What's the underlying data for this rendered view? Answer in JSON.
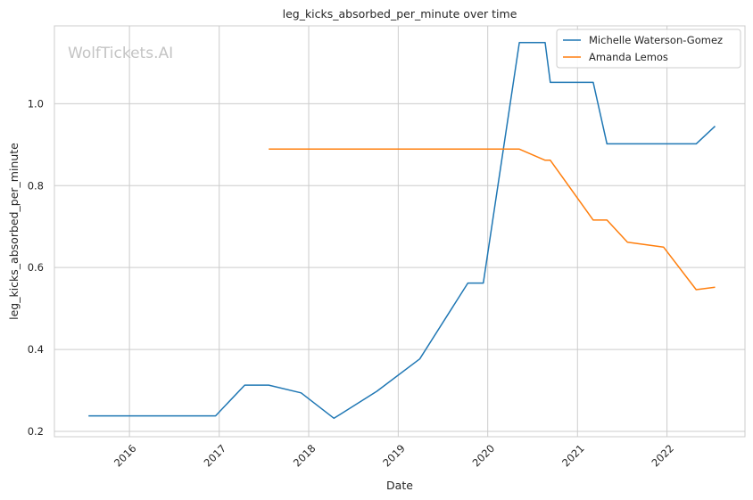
{
  "chart_data": {
    "type": "line",
    "title": "leg_kicks_absorbed_per_minute over time",
    "xlabel": "Date",
    "ylabel": "leg_kicks_absorbed_per_minute",
    "watermark": "WolfTickets.AI",
    "xlim": [
      "2015-03-01",
      "2022-11-15"
    ],
    "ylim": [
      0.187,
      1.19
    ],
    "x_ticks": [
      "2016",
      "2017",
      "2018",
      "2019",
      "2020",
      "2021",
      "2022"
    ],
    "y_ticks": [
      "0.2",
      "0.4",
      "0.6",
      "0.8",
      "1.0"
    ],
    "grid": true,
    "legend_position": "top-right",
    "series": [
      {
        "name": "Michelle Waterson-Gomez",
        "color": "#1f77b4",
        "points": [
          [
            "2015-07-18",
            0.238
          ],
          [
            "2016-12-17",
            0.238
          ],
          [
            "2017-04-15",
            0.313
          ],
          [
            "2017-07-22",
            0.313
          ],
          [
            "2017-12-01",
            0.294
          ],
          [
            "2018-04-14",
            0.232
          ],
          [
            "2018-10-06",
            0.298
          ],
          [
            "2019-03-30",
            0.377
          ],
          [
            "2019-10-12",
            0.562
          ],
          [
            "2019-12-14",
            0.562
          ],
          [
            "2020-05-09",
            1.149
          ],
          [
            "2020-08-22",
            1.149
          ],
          [
            "2020-09-12",
            1.052
          ],
          [
            "2021-03-06",
            1.052
          ],
          [
            "2021-05-01",
            0.902
          ],
          [
            "2022-04-30",
            0.902
          ],
          [
            "2022-07-16",
            0.945
          ]
        ]
      },
      {
        "name": "Amanda Lemos",
        "color": "#ff7f0e",
        "points": [
          [
            "2017-07-22",
            0.889
          ],
          [
            "2020-05-09",
            0.889
          ],
          [
            "2020-08-22",
            0.862
          ],
          [
            "2020-09-12",
            0.862
          ],
          [
            "2021-03-06",
            0.716
          ],
          [
            "2021-05-01",
            0.716
          ],
          [
            "2021-07-24",
            0.662
          ],
          [
            "2021-12-18",
            0.65
          ],
          [
            "2022-04-30",
            0.546
          ],
          [
            "2022-07-16",
            0.552
          ]
        ]
      }
    ]
  }
}
